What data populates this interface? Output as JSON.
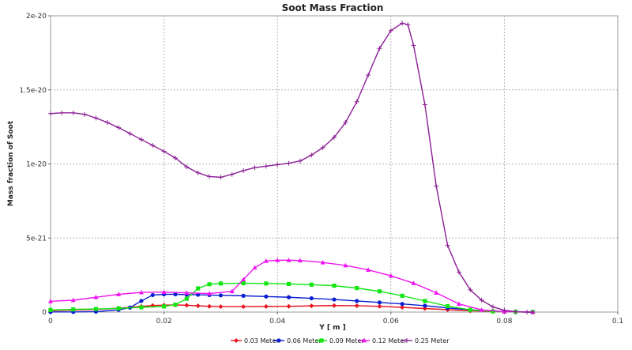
{
  "chart_data": {
    "type": "line",
    "title": "Soot Mass Fraction",
    "xlabel": "Y [ m ]",
    "ylabel": "Mass fraction of Soot",
    "xlim": [
      0,
      0.1
    ],
    "ylim": [
      0,
      2e-20
    ],
    "x_ticks": [
      0,
      0.02,
      0.04,
      0.06,
      0.08,
      0.1
    ],
    "x_tick_labels": [
      "0",
      "0.02",
      "0.04",
      "0.06",
      "0.08",
      "0.1"
    ],
    "y_ticks": [
      0,
      5e-21,
      1e-20,
      1.5e-20,
      2e-20
    ],
    "y_tick_labels": [
      "0",
      "5e-21",
      "1e-20",
      "1.5e-20",
      "2e-20"
    ],
    "grid": true,
    "legend_position": "bottom",
    "series": [
      {
        "name": "0.03 Meter",
        "color": "#e8141e",
        "marker": "diamond",
        "x": [
          0,
          0.004,
          0.008,
          0.012,
          0.016,
          0.018,
          0.02,
          0.022,
          0.024,
          0.026,
          0.028,
          0.03,
          0.034,
          0.038,
          0.042,
          0.046,
          0.05,
          0.054,
          0.058,
          0.062,
          0.066,
          0.07,
          0.074,
          0.078,
          0.082,
          0.085
        ],
        "y": [
          1e-22,
          1.4e-22,
          1.8e-22,
          2.6e-22,
          3.8e-22,
          4.4e-22,
          4.7e-22,
          4.8e-22,
          4.6e-22,
          4.2e-22,
          3.9e-22,
          3.7e-22,
          3.7e-22,
          3.8e-22,
          3.9e-22,
          4.2e-22,
          4.4e-22,
          4.3e-22,
          3.9e-22,
          3.2e-22,
          2.4e-22,
          1.6e-22,
          9e-23,
          4e-23,
          1e-23,
          0
        ]
      },
      {
        "name": "0.06 Meter",
        "color": "#0a1ed2",
        "marker": "circle",
        "x": [
          0,
          0.004,
          0.008,
          0.012,
          0.014,
          0.016,
          0.018,
          0.02,
          0.022,
          0.024,
          0.026,
          0.028,
          0.03,
          0.034,
          0.038,
          0.042,
          0.046,
          0.05,
          0.054,
          0.058,
          0.062,
          0.066,
          0.07,
          0.074,
          0.078,
          0.082,
          0.085
        ],
        "y": [
          1e-23,
          1e-23,
          3e-23,
          1.5e-22,
          3e-22,
          7.5e-22,
          1.15e-21,
          1.2e-21,
          1.2e-21,
          1.18e-21,
          1.17e-21,
          1.15e-21,
          1.13e-21,
          1.1e-21,
          1.05e-21,
          1e-21,
          9.3e-22,
          8.5e-22,
          7.5e-22,
          6.5e-22,
          5.5e-22,
          4.3e-22,
          2.8e-22,
          1.5e-22,
          6e-23,
          2e-23,
          0
        ]
      },
      {
        "name": "0.09 Meter",
        "color": "#14e614",
        "marker": "square",
        "x": [
          0,
          0.004,
          0.008,
          0.012,
          0.016,
          0.02,
          0.022,
          0.024,
          0.026,
          0.028,
          0.03,
          0.034,
          0.038,
          0.042,
          0.046,
          0.05,
          0.054,
          0.058,
          0.062,
          0.066,
          0.07,
          0.074,
          0.078,
          0.082,
          0.085
        ],
        "y": [
          1.4e-22,
          1.8e-22,
          2.1e-22,
          2.5e-22,
          3.2e-22,
          3.8e-22,
          5e-22,
          9e-22,
          1.6e-21,
          1.88e-21,
          1.93e-21,
          1.95e-21,
          1.93e-21,
          1.9e-21,
          1.85e-21,
          1.78e-21,
          1.62e-21,
          1.4e-21,
          1.1e-21,
          7.5e-22,
          4e-22,
          1.5e-22,
          5e-23,
          1e-23,
          0
        ]
      },
      {
        "name": "0.12 Meter",
        "color": "#f014f0",
        "marker": "triangle",
        "x": [
          0,
          0.004,
          0.008,
          0.012,
          0.016,
          0.02,
          0.024,
          0.028,
          0.032,
          0.034,
          0.036,
          0.038,
          0.04,
          0.042,
          0.044,
          0.048,
          0.052,
          0.056,
          0.06,
          0.064,
          0.068,
          0.072,
          0.076,
          0.08,
          0.085
        ],
        "y": [
          7.3e-22,
          8e-22,
          1e-21,
          1.2e-21,
          1.33e-21,
          1.35e-21,
          1.3e-21,
          1.25e-21,
          1.4e-21,
          2.2e-21,
          3e-21,
          3.45e-21,
          3.5e-21,
          3.5e-21,
          3.48e-21,
          3.35e-21,
          3.15e-21,
          2.85e-21,
          2.45e-21,
          1.95e-21,
          1.3e-21,
          5.5e-22,
          1.5e-22,
          3e-23,
          0
        ]
      },
      {
        "name": "0.25 Meter",
        "color": "#8c1e96",
        "marker": "plus",
        "x": [
          0,
          0.002,
          0.004,
          0.006,
          0.008,
          0.01,
          0.012,
          0.014,
          0.016,
          0.018,
          0.02,
          0.022,
          0.024,
          0.026,
          0.028,
          0.03,
          0.032,
          0.034,
          0.036,
          0.038,
          0.04,
          0.042,
          0.044,
          0.046,
          0.048,
          0.05,
          0.052,
          0.054,
          0.056,
          0.058,
          0.06,
          0.062,
          0.063,
          0.064,
          0.066,
          0.068,
          0.07,
          0.072,
          0.074,
          0.076,
          0.078,
          0.08,
          0.082,
          0.084,
          0.085
        ],
        "y": [
          1.34e-20,
          1.345e-20,
          1.345e-20,
          1.335e-20,
          1.31e-20,
          1.28e-20,
          1.245e-20,
          1.205e-20,
          1.165e-20,
          1.125e-20,
          1.085e-20,
          1.04e-20,
          9.8e-21,
          9.4e-21,
          9.15e-21,
          9.1e-21,
          9.3e-21,
          9.55e-21,
          9.75e-21,
          9.85e-21,
          9.95e-21,
          1.005e-20,
          1.02e-20,
          1.06e-20,
          1.11e-20,
          1.18e-20,
          1.28e-20,
          1.42e-20,
          1.6e-20,
          1.78e-20,
          1.9e-20,
          1.95e-20,
          1.94e-20,
          1.8e-20,
          1.4e-20,
          8.5e-21,
          4.5e-21,
          2.7e-21,
          1.5e-21,
          8e-22,
          3.5e-22,
          1.2e-22,
          3e-23,
          0,
          0
        ]
      }
    ]
  }
}
